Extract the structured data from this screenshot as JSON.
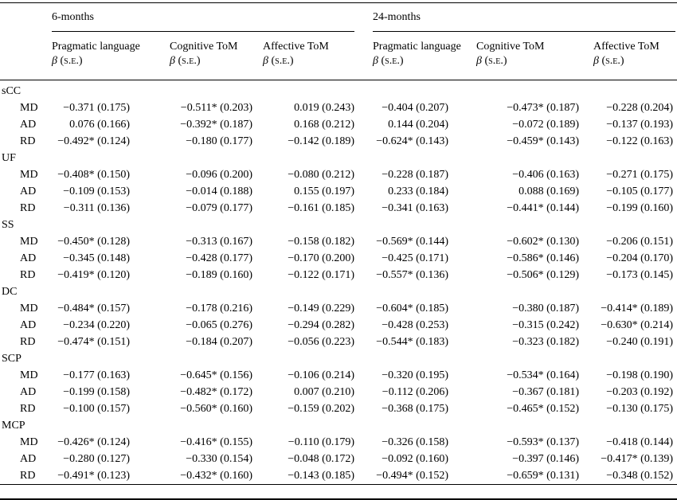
{
  "table": {
    "column_groups": [
      {
        "label": "6-months"
      },
      {
        "label": "24-months"
      }
    ],
    "sub_columns": [
      "Pragmatic language",
      "Cognitive ToM",
      "Affective ToM"
    ],
    "beta_label": "β",
    "se_label": "(s.e.)",
    "row_groups": [
      {
        "label": "sCC",
        "rows": [
          {
            "label": "MD",
            "values": [
              "−0.371 (0.175)",
              "−0.511* (0.203)",
              "0.019 (0.243)",
              "−0.404 (0.207)",
              "−0.473* (0.187)",
              "−0.228 (0.204)"
            ]
          },
          {
            "label": "AD",
            "values": [
              "0.076 (0.166)",
              "−0.392* (0.187)",
              "0.168 (0.212)",
              "0.144 (0.204)",
              "−0.072 (0.189)",
              "−0.137 (0.193)"
            ]
          },
          {
            "label": "RD",
            "values": [
              "−0.492* (0.124)",
              "−0.180 (0.177)",
              "−0.142 (0.189)",
              "−0.624* (0.143)",
              "−0.459* (0.143)",
              "−0.122 (0.163)"
            ]
          }
        ]
      },
      {
        "label": "UF",
        "rows": [
          {
            "label": "MD",
            "values": [
              "−0.408* (0.150)",
              "−0.096 (0.200)",
              "−0.080 (0.212)",
              "−0.228 (0.187)",
              "−0.406 (0.163)",
              "−0.271 (0.175)"
            ]
          },
          {
            "label": "AD",
            "values": [
              "−0.109 (0.153)",
              "−0.014 (0.188)",
              "0.155 (0.197)",
              "0.233 (0.184)",
              "0.088 (0.169)",
              "−0.105 (0.177)"
            ]
          },
          {
            "label": "RD",
            "values": [
              "−0.311 (0.136)",
              "−0.079 (0.177)",
              "−0.161 (0.185)",
              "−0.341 (0.163)",
              "−0.441* (0.144)",
              "−0.199 (0.160)"
            ]
          }
        ]
      },
      {
        "label": "SS",
        "rows": [
          {
            "label": "MD",
            "values": [
              "−0.450* (0.128)",
              "−0.313 (0.167)",
              "−0.158 (0.182)",
              "−0.569* (0.144)",
              "−0.602* (0.130)",
              "−0.206 (0.151)"
            ]
          },
          {
            "label": "AD",
            "values": [
              "−0.345 (0.148)",
              "−0.428 (0.177)",
              "−0.170 (0.200)",
              "−0.425 (0.171)",
              "−0.586* (0.146)",
              "−0.204 (0.170)"
            ]
          },
          {
            "label": "RD",
            "values": [
              "−0.419* (0.120)",
              "−0.189 (0.160)",
              "−0.122 (0.171)",
              "−0.557* (0.136)",
              "−0.506* (0.129)",
              "−0.173 (0.145)"
            ]
          }
        ]
      },
      {
        "label": "DC",
        "rows": [
          {
            "label": "MD",
            "values": [
              "−0.484* (0.157)",
              "−0.178 (0.216)",
              "−0.149 (0.229)",
              "−0.604* (0.185)",
              "−0.380 (0.187)",
              "−0.414* (0.189)"
            ]
          },
          {
            "label": "AD",
            "values": [
              "−0.234 (0.220)",
              "−0.065 (0.276)",
              "−0.294 (0.282)",
              "−0.428 (0.253)",
              "−0.315 (0.242)",
              "−0.630* (0.214)"
            ]
          },
          {
            "label": "RD",
            "values": [
              "−0.474* (0.151)",
              "−0.184 (0.207)",
              "−0.056 (0.223)",
              "−0.544* (0.183)",
              "−0.323 (0.182)",
              "−0.240 (0.191)"
            ]
          }
        ]
      },
      {
        "label": "SCP",
        "rows": [
          {
            "label": "MD",
            "values": [
              "−0.177 (0.163)",
              "−0.645* (0.156)",
              "−0.106 (0.214)",
              "−0.320 (0.195)",
              "−0.534* (0.164)",
              "−0.198 (0.190)"
            ]
          },
          {
            "label": "AD",
            "values": [
              "−0.199 (0.158)",
              "−0.482* (0.172)",
              "0.007 (0.210)",
              "−0.112 (0.206)",
              "−0.367 (0.181)",
              "−0.203 (0.192)"
            ]
          },
          {
            "label": "RD",
            "values": [
              "−0.100 (0.157)",
              "−0.560* (0.160)",
              "−0.159 (0.202)",
              "−0.368 (0.175)",
              "−0.465* (0.152)",
              "−0.130 (0.175)"
            ]
          }
        ]
      },
      {
        "label": "MCP",
        "rows": [
          {
            "label": "MD",
            "values": [
              "−0.426* (0.124)",
              "−0.416* (0.155)",
              "−0.110 (0.179)",
              "−0.326 (0.158)",
              "−0.593* (0.137)",
              "−0.418 (0.144)"
            ]
          },
          {
            "label": "AD",
            "values": [
              "−0.280 (0.127)",
              "−0.330 (0.154)",
              "−0.048 (0.172)",
              "−0.092 (0.160)",
              "−0.397 (0.146)",
              "−0.417* (0.139)"
            ]
          },
          {
            "label": "RD",
            "values": [
              "−0.491* (0.123)",
              "−0.432* (0.160)",
              "−0.143 (0.185)",
              "−0.494* (0.152)",
              "−0.659* (0.131)",
              "−0.348 (0.152)"
            ]
          }
        ]
      }
    ]
  }
}
